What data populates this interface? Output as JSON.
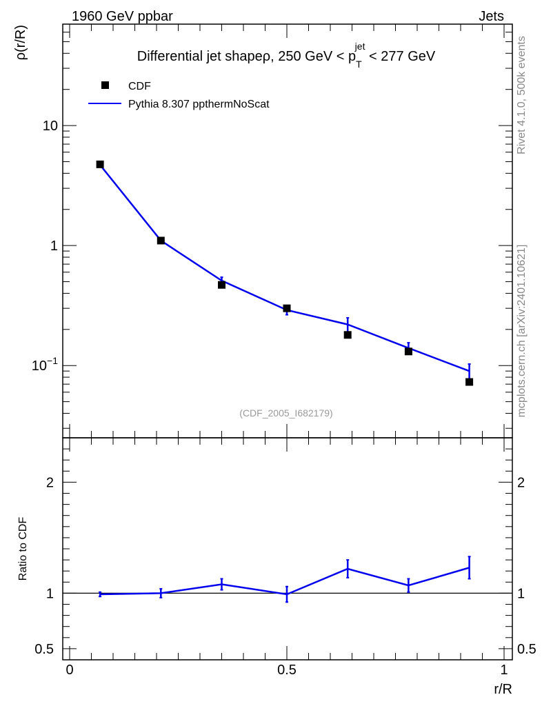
{
  "header": {
    "left": "1960 GeV ppbar",
    "right": "Jets"
  },
  "side_labels": {
    "rivet": "Rivet 4.1.0,  500k events",
    "mcplots": "mcplots.cern.ch [arXiv:2401.10621]"
  },
  "title_parts": {
    "main": "Differential jet shapeρ, 250 GeV < p",
    "sup": "jet",
    "sub": "T",
    "tail": " < 277 GeV"
  },
  "legend": {
    "data_label": "CDF",
    "mc_label": "Pythia 8.307 ppthermNoScat"
  },
  "analysis_id": "(CDF_2005_I682179)",
  "colors": {
    "mc": "#0000ee",
    "data": "#000000",
    "watermark": "#888888"
  },
  "chart_data": [
    {
      "type": "scatter",
      "panel": "main",
      "yscale": "log",
      "ylabel": "ρ(r/R)",
      "xlim": [
        0,
        1
      ],
      "ylim": [
        0.025,
        70
      ],
      "y_ticks": [
        {
          "value": 10,
          "label": "10"
        },
        {
          "value": 1,
          "label": "1"
        },
        {
          "value": 0.1,
          "label": "10",
          "exp": "−1"
        }
      ],
      "series": [
        {
          "name": "CDF",
          "x": [
            0.07,
            0.21,
            0.35,
            0.5,
            0.64,
            0.78,
            0.92
          ],
          "y": [
            4.75,
            1.1,
            0.47,
            0.3,
            0.18,
            0.131,
            0.073
          ]
        },
        {
          "name": "Pythia 8.307 ppthermNoScat",
          "x": [
            0.07,
            0.21,
            0.35,
            0.5,
            0.64,
            0.78,
            0.92
          ],
          "y": [
            4.7,
            1.1,
            0.51,
            0.29,
            0.22,
            0.14,
            0.09
          ],
          "err": [
            0.06,
            0.015,
            0.035,
            0.025,
            0.03,
            0.015,
            0.013
          ]
        }
      ]
    },
    {
      "type": "line",
      "panel": "ratio",
      "ylabel": "Ratio to CDF",
      "xlabel": "r/R",
      "xlim": [
        0,
        1
      ],
      "ylim": [
        0.4,
        2.4
      ],
      "x_ticks": [
        {
          "value": 0,
          "label": "0"
        },
        {
          "value": 0.5,
          "label": "0.5"
        },
        {
          "value": 1,
          "label": "1"
        }
      ],
      "y_ticks": [
        {
          "value": 2,
          "label": "2"
        },
        {
          "value": 1,
          "label": "1"
        },
        {
          "value": 0.5,
          "label": "0.5"
        }
      ],
      "reference": 1,
      "series": [
        {
          "name": "Pythia 8.307 ppthermNoScat / CDF",
          "x": [
            0.07,
            0.21,
            0.35,
            0.5,
            0.64,
            0.78,
            0.92
          ],
          "y": [
            0.99,
            1.0,
            1.08,
            0.99,
            1.22,
            1.07,
            1.23
          ],
          "err": [
            0.02,
            0.04,
            0.05,
            0.07,
            0.08,
            0.06,
            0.1
          ]
        }
      ]
    }
  ]
}
